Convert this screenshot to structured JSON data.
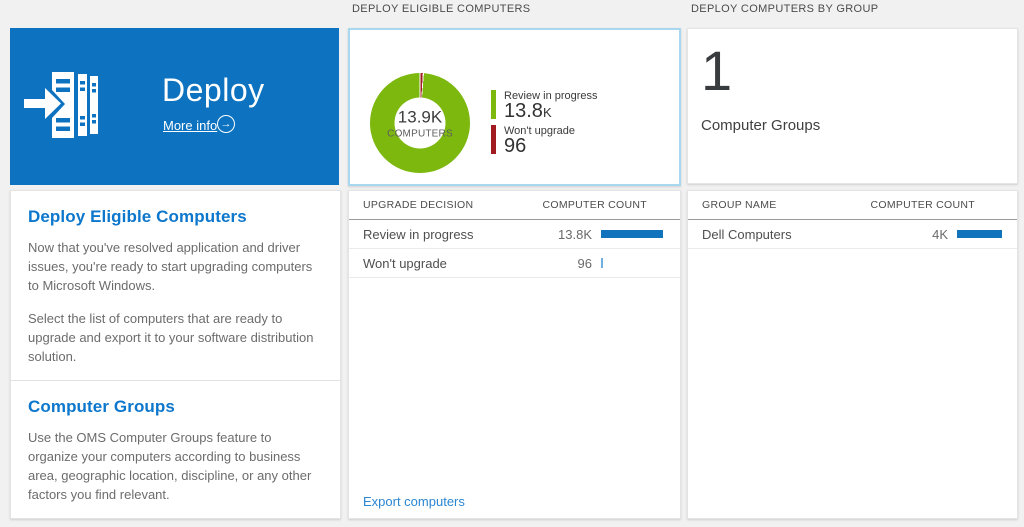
{
  "colors": {
    "background": "#f1f1f1",
    "tile_blue": "#0d73c0",
    "heading_blue": "#0c77cc",
    "link_blue": "#2b86d2",
    "bar_blue": "#1173bb",
    "donut_green": "#7db80f",
    "donut_red": "#a21b20",
    "selected_card_border": "#a9d7ef"
  },
  "icons": {
    "arrow_right": "→"
  },
  "left": {
    "tile": {
      "title": "Deploy",
      "more_info": "More info"
    },
    "sections": [
      {
        "heading": "Deploy Eligible Computers",
        "paragraphs": [
          "Now that you've resolved application and driver issues, you're ready to start upgrading computers to Microsoft Windows.",
          "Select the list of computers that are ready to upgrade and export it to your software distribution solution."
        ]
      },
      {
        "heading": "Computer Groups",
        "paragraphs": [
          "Use the OMS Computer Groups feature to organize your computers according to business area, geographic location, discipline, or any other factors you find relevant."
        ]
      }
    ]
  },
  "middle": {
    "header": "DEPLOY ELIGIBLE COMPUTERS",
    "donut": {
      "center_value": "13.9K",
      "center_label": "COMPUTERS",
      "legend": [
        {
          "label": "Review in progress",
          "value": "13.8",
          "suffix": "K",
          "color": "#7db80f"
        },
        {
          "label": "Won't upgrade",
          "value": "96",
          "suffix": "",
          "color": "#a21b20"
        }
      ]
    },
    "table": {
      "col1": "UPGRADE DECISION",
      "col2": "COMPUTER COUNT",
      "rows": [
        {
          "label": "Review in progress",
          "value": "13.8K",
          "bar": 62,
          "bar_color": "#1173bb"
        },
        {
          "label": "Won't upgrade",
          "value": "96",
          "bar": 2,
          "bar_color": "#6fb0e0"
        }
      ]
    },
    "link": "Export computers"
  },
  "right": {
    "header": "DEPLOY COMPUTERS BY GROUP",
    "summary": {
      "count": "1",
      "label": "Computer Groups"
    },
    "table": {
      "col1": "GROUP NAME",
      "col2": "COMPUTER COUNT",
      "rows": [
        {
          "label": "Dell Computers",
          "value": "4K",
          "bar": 45,
          "bar_color": "#1173bb"
        }
      ]
    }
  },
  "chart_data": {
    "type": "pie",
    "title": "Deploy eligible computers",
    "donut": true,
    "center_text": "13.9K COMPUTERS",
    "labels": [
      "Review in progress",
      "Won't upgrade"
    ],
    "values": [
      13800,
      96
    ],
    "colors": [
      "#7db80f",
      "#a21b20"
    ],
    "legend_position": "right"
  }
}
